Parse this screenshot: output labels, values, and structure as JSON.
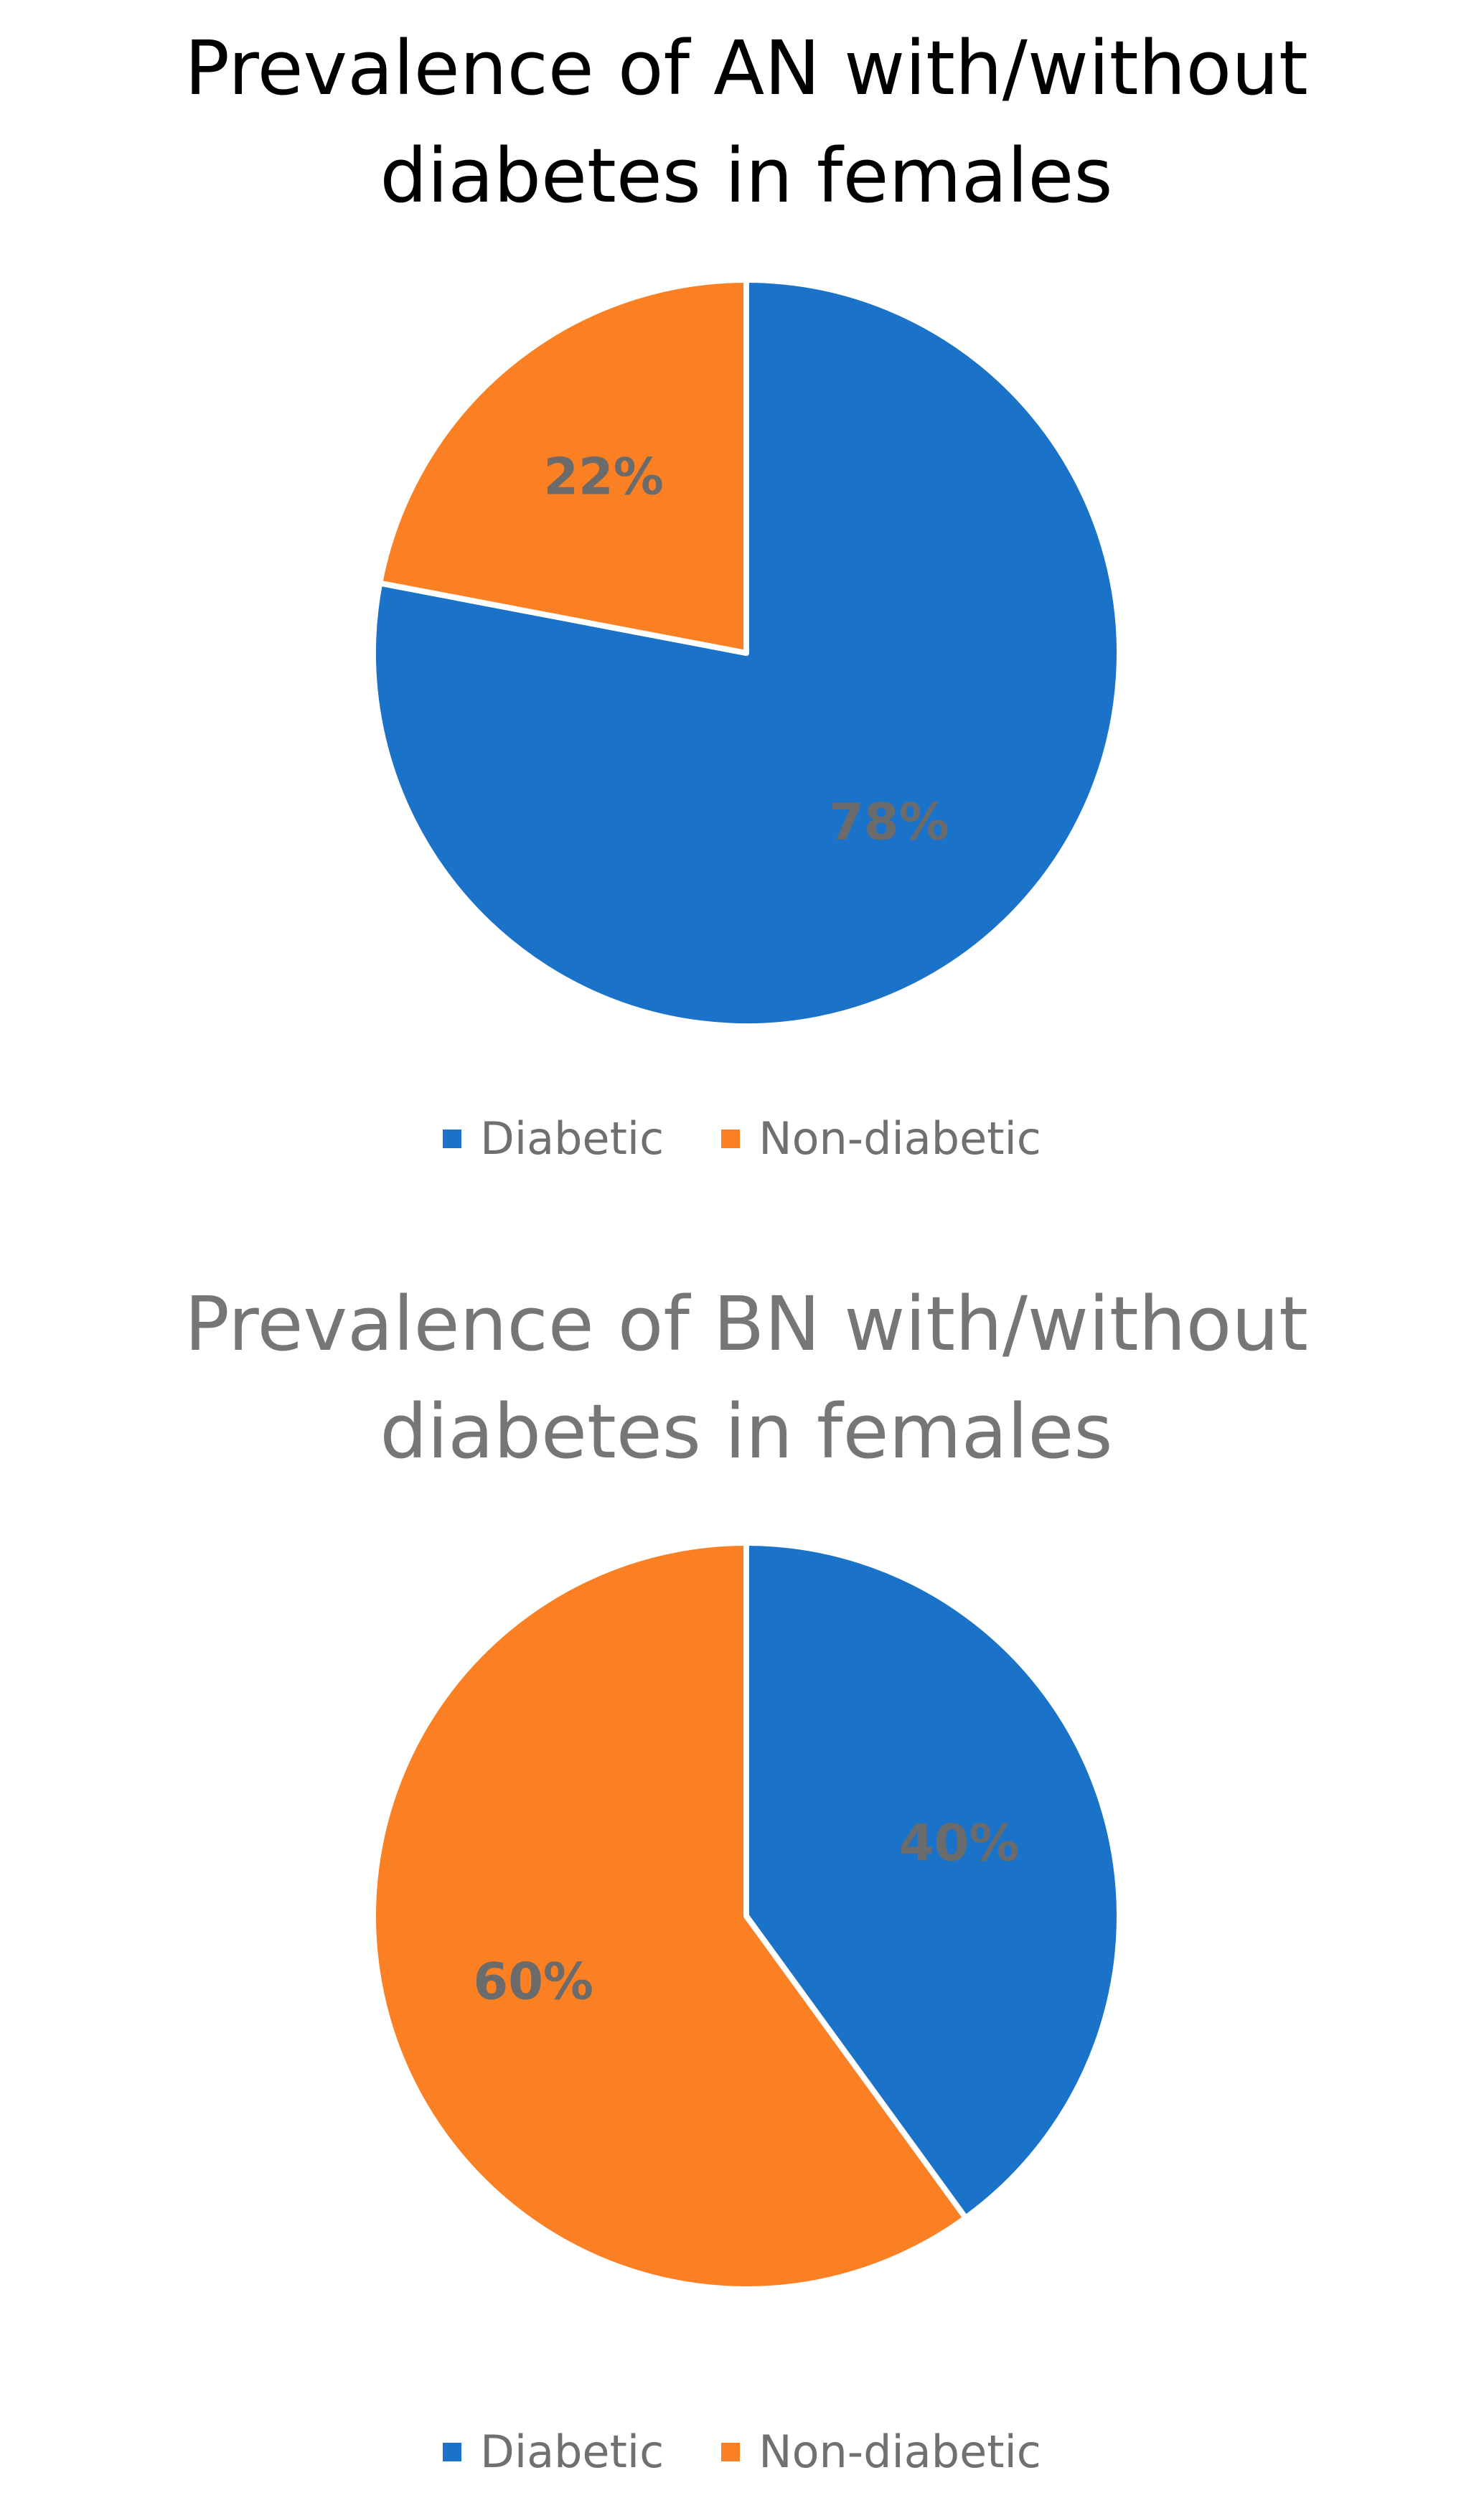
{
  "chart_data": [
    {
      "type": "pie",
      "title": "Prevalence of AN with/without diabetes in females",
      "title_color": "#000000",
      "labels": [
        "Diabetic",
        "Non-diabetic"
      ],
      "values": [
        78,
        22
      ],
      "data_labels": [
        "78%",
        "22%"
      ],
      "colors": [
        "#1A73C8",
        "#FB7F23"
      ],
      "legend": "bottom"
    },
    {
      "type": "pie",
      "title": "Prevalence of BN with/without diabetes in females",
      "title_color": "#767676",
      "labels": [
        "Diabetic",
        "Non-diabetic"
      ],
      "values": [
        40,
        60
      ],
      "data_labels": [
        "40%",
        "60%"
      ],
      "colors": [
        "#1A73C8",
        "#FB7F23"
      ],
      "legend": "bottom"
    }
  ],
  "data_label_color": "#6b6b6b"
}
